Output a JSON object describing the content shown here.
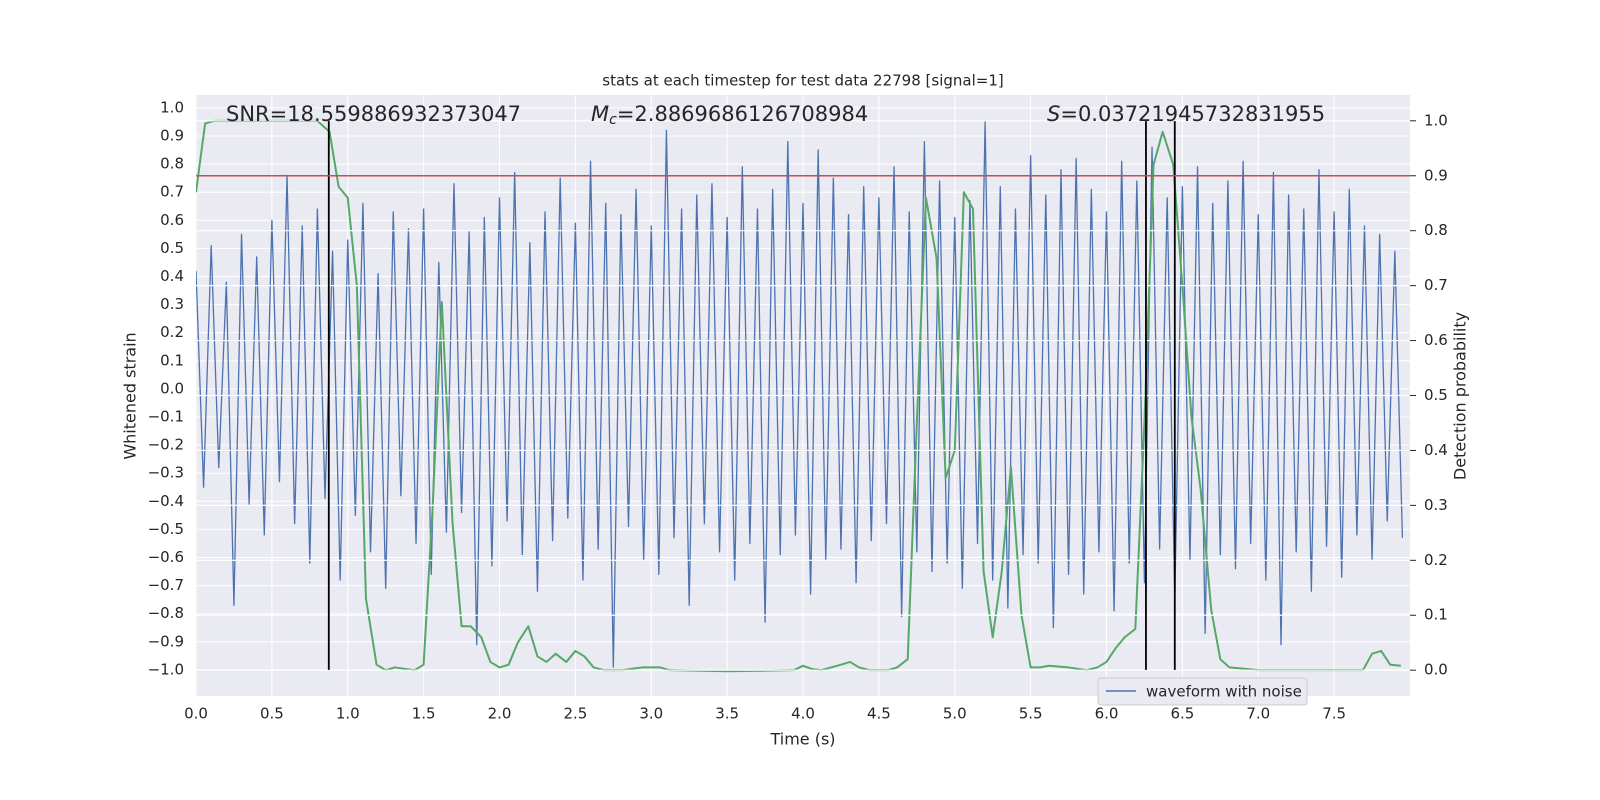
{
  "chart_data": {
    "type": "line",
    "title": "stats at each timestep for test data 22798 [signal=1]",
    "x_label": "Time (s)",
    "y_label": "Whitened strain",
    "y2_label": "Detection probability",
    "annotations": [
      {
        "text": "SNR=18.559886932373047"
      },
      {
        "symbol": "M",
        "subscript": "c",
        "text": "=2.8869686126708984"
      },
      {
        "symbol": "S",
        "text": "=0.03721945732831955"
      }
    ],
    "xlim": [
      0,
      8
    ],
    "ylim": [
      -1.093,
      1.046
    ],
    "y2lim": [
      -0.047,
      1.047
    ],
    "grid": true,
    "legend": "lower right",
    "xticks": [
      {
        "value": 0,
        "label": "0.0"
      },
      0.5,
      {
        "value": 1,
        "label": "1.0"
      },
      1.5,
      {
        "value": 2,
        "label": "2.0"
      },
      2.5,
      {
        "value": 3,
        "label": "3.0"
      },
      3.5,
      {
        "value": 4,
        "label": "4.0"
      },
      4.5,
      {
        "value": 5,
        "label": "5.0"
      },
      5.5,
      {
        "value": 6,
        "label": "6.0"
      },
      6.5,
      {
        "value": 7,
        "label": "7.0"
      },
      7.5
    ],
    "yticks": [
      {
        "value": -1,
        "label": "−1.0"
      },
      {
        "value": -0.9,
        "label": "−0.9"
      },
      {
        "value": -0.8,
        "label": "−0.8"
      },
      {
        "value": -0.7,
        "label": "−0.7"
      },
      {
        "value": -0.6,
        "label": "−0.6"
      },
      {
        "value": -0.5,
        "label": "−0.5"
      },
      {
        "value": -0.4,
        "label": "−0.4"
      },
      {
        "value": -0.3,
        "label": "−0.3"
      },
      {
        "value": -0.2,
        "label": "−0.2"
      },
      {
        "value": -0.1,
        "label": "−0.1"
      },
      {
        "value": 0,
        "label": "0.0"
      },
      0.1,
      0.2,
      0.3,
      0.4,
      0.5,
      0.6,
      0.7,
      0.8,
      0.9,
      {
        "value": 1,
        "label": "1.0"
      }
    ],
    "y2ticks": [
      {
        "value": 0,
        "label": "0.0"
      },
      0.1,
      0.2,
      0.3,
      0.4,
      0.5,
      0.6,
      0.7,
      0.8,
      0.9,
      {
        "value": 1,
        "label": "1.0"
      }
    ],
    "threshold_y2": 0.9,
    "threshold_color": "#c44e52",
    "vlines": [
      0.875,
      6.26,
      6.45
    ],
    "vline_range": [
      -1.0,
      0.953
    ],
    "vline_color": "#000000",
    "series": [
      {
        "name": "waveform with noise",
        "color": "#4c72b0",
        "x": [
          0,
          0.05,
          0.1,
          0.15,
          0.2,
          0.25,
          0.3,
          0.35,
          0.4,
          0.45,
          0.5,
          0.55,
          0.6,
          0.65,
          0.7,
          0.75,
          0.8,
          0.85,
          0.9,
          0.95,
          1,
          1.05,
          1.1,
          1.15,
          1.2,
          1.25,
          1.3,
          1.35,
          1.4,
          1.45,
          1.5,
          1.55,
          1.6,
          1.65,
          1.7,
          1.75,
          1.8,
          1.85,
          1.9,
          1.95,
          2,
          2.05,
          2.1,
          2.15,
          2.2,
          2.25,
          2.3,
          2.35,
          2.4,
          2.45,
          2.5,
          2.55,
          2.6,
          2.65,
          2.7,
          2.75,
          2.8,
          2.85,
          2.9,
          2.95,
          3,
          3.05,
          3.1,
          3.15,
          3.2,
          3.25,
          3.3,
          3.35,
          3.4,
          3.45,
          3.5,
          3.55,
          3.6,
          3.65,
          3.7,
          3.75,
          3.8,
          3.85,
          3.9,
          3.95,
          4,
          4.05,
          4.1,
          4.15,
          4.2,
          4.25,
          4.3,
          4.35,
          4.4,
          4.45,
          4.5,
          4.55,
          4.6,
          4.65,
          4.7,
          4.75,
          4.8,
          4.85,
          4.9,
          4.95,
          5,
          5.05,
          5.1,
          5.15,
          5.2,
          5.25,
          5.3,
          5.35,
          5.4,
          5.45,
          5.5,
          5.55,
          5.6,
          5.65,
          5.7,
          5.75,
          5.8,
          5.85,
          5.9,
          5.95,
          6,
          6.05,
          6.1,
          6.15,
          6.2,
          6.25,
          6.3,
          6.35,
          6.4,
          6.45,
          6.5,
          6.55,
          6.6,
          6.65,
          6.7,
          6.75,
          6.8,
          6.85,
          6.9,
          6.95,
          7,
          7.05,
          7.1,
          7.15,
          7.2,
          7.25,
          7.3,
          7.35,
          7.4,
          7.45,
          7.5,
          7.55,
          7.6,
          7.65,
          7.7,
          7.75,
          7.8,
          7.85,
          7.9,
          7.95
        ],
        "values": [
          0.42,
          -0.35,
          0.51,
          -0.28,
          0.38,
          -0.77,
          0.55,
          -0.41,
          0.47,
          -0.52,
          0.6,
          -0.33,
          0.76,
          -0.48,
          0.58,
          -0.62,
          0.64,
          -0.39,
          0.49,
          -0.68,
          0.53,
          -0.45,
          0.66,
          -0.58,
          0.41,
          -0.71,
          0.63,
          -0.38,
          0.57,
          -0.55,
          0.64,
          -0.66,
          0.45,
          -0.51,
          0.73,
          -0.44,
          0.56,
          -0.91,
          0.61,
          -0.63,
          0.68,
          -0.47,
          0.77,
          -0.59,
          0.52,
          -0.72,
          0.63,
          -0.54,
          0.75,
          -0.46,
          0.59,
          -0.68,
          0.81,
          -0.57,
          0.66,
          -0.99,
          0.62,
          -0.49,
          0.71,
          -0.61,
          0.58,
          -0.66,
          0.92,
          -0.53,
          0.64,
          -0.77,
          0.69,
          -0.48,
          0.73,
          -0.58,
          0.61,
          -0.68,
          0.79,
          -0.55,
          0.64,
          -0.83,
          0.71,
          -0.59,
          0.88,
          -0.52,
          0.66,
          -0.73,
          0.85,
          -0.61,
          0.75,
          -0.57,
          0.62,
          -0.69,
          0.72,
          -0.54,
          0.68,
          -0.48,
          0.79,
          -0.81,
          0.63,
          -0.58,
          0.88,
          -0.65,
          0.74,
          -0.62,
          0.61,
          -0.71,
          0.67,
          -0.55,
          0.95,
          -0.68,
          0.72,
          -0.78,
          0.64,
          -0.59,
          0.83,
          -0.62,
          0.69,
          -0.85,
          0.78,
          -0.66,
          0.82,
          -0.73,
          0.71,
          -0.58,
          0.63,
          -0.79,
          0.81,
          -0.62,
          0.74,
          -0.69,
          0.86,
          -0.57,
          0.68,
          -0.75,
          0.72,
          -0.61,
          0.79,
          -0.87,
          0.66,
          -0.59,
          0.74,
          -0.64,
          0.81,
          -0.55,
          0.62,
          -0.68,
          0.77,
          -0.91,
          0.69,
          -0.58,
          0.64,
          -0.72,
          0.78,
          -0.56,
          0.63,
          -0.67,
          0.71,
          -0.52,
          0.58,
          -0.61,
          0.55,
          -0.47,
          0.49,
          -0.53
        ]
      },
      {
        "color": "#55a868",
        "axis": "y2",
        "x": [
          0,
          0.06,
          0.12,
          0.8,
          0.88,
          0.94,
          1,
          1.06,
          1.12,
          1.19,
          1.25,
          1.31,
          1.44,
          1.5,
          1.56,
          1.62,
          1.69,
          1.75,
          1.81,
          1.88,
          1.94,
          2,
          2.06,
          2.12,
          2.19,
          2.25,
          2.31,
          2.37,
          2.44,
          2.5,
          2.56,
          2.62,
          2.69,
          2.81,
          2.94,
          3.06,
          3.12,
          3.5,
          3.94,
          4,
          4.06,
          4.12,
          4.25,
          4.31,
          4.37,
          4.44,
          4.56,
          4.62,
          4.69,
          4.75,
          4.81,
          4.88,
          4.94,
          5,
          5.06,
          5.12,
          5.19,
          5.25,
          5.31,
          5.37,
          5.44,
          5.5,
          5.56,
          5.62,
          5.75,
          5.87,
          5.94,
          6,
          6.06,
          6.12,
          6.19,
          6.25,
          6.31,
          6.37,
          6.44,
          6.5,
          6.56,
          6.62,
          6.69,
          6.75,
          6.81,
          7,
          7.5,
          7.69,
          7.75,
          7.81,
          7.87,
          7.94
        ],
        "values": [
          0.87,
          0.995,
          1.0,
          1.0,
          0.98,
          0.88,
          0.86,
          0.7,
          0.13,
          0.01,
          0.0,
          0.005,
          0.0,
          0.01,
          0.3,
          0.67,
          0.27,
          0.08,
          0.08,
          0.06,
          0.015,
          0.005,
          0.01,
          0.05,
          0.08,
          0.025,
          0.015,
          0.03,
          0.015,
          0.035,
          0.025,
          0.005,
          0.0,
          0.0,
          0.005,
          0.005,
          0.0,
          -0.002,
          0.0,
          0.008,
          0.002,
          0.0,
          0.01,
          0.015,
          0.005,
          0.0,
          0.0,
          0.005,
          0.02,
          0.45,
          0.86,
          0.75,
          0.35,
          0.4,
          0.87,
          0.84,
          0.18,
          0.06,
          0.18,
          0.37,
          0.1,
          0.005,
          0.005,
          0.008,
          0.005,
          0.0,
          0.005,
          0.015,
          0.04,
          0.06,
          0.075,
          0.45,
          0.92,
          0.98,
          0.92,
          0.7,
          0.46,
          0.33,
          0.11,
          0.02,
          0.005,
          0.0,
          0.0,
          0.0,
          0.03,
          0.035,
          0.01,
          0.008
        ]
      }
    ]
  }
}
